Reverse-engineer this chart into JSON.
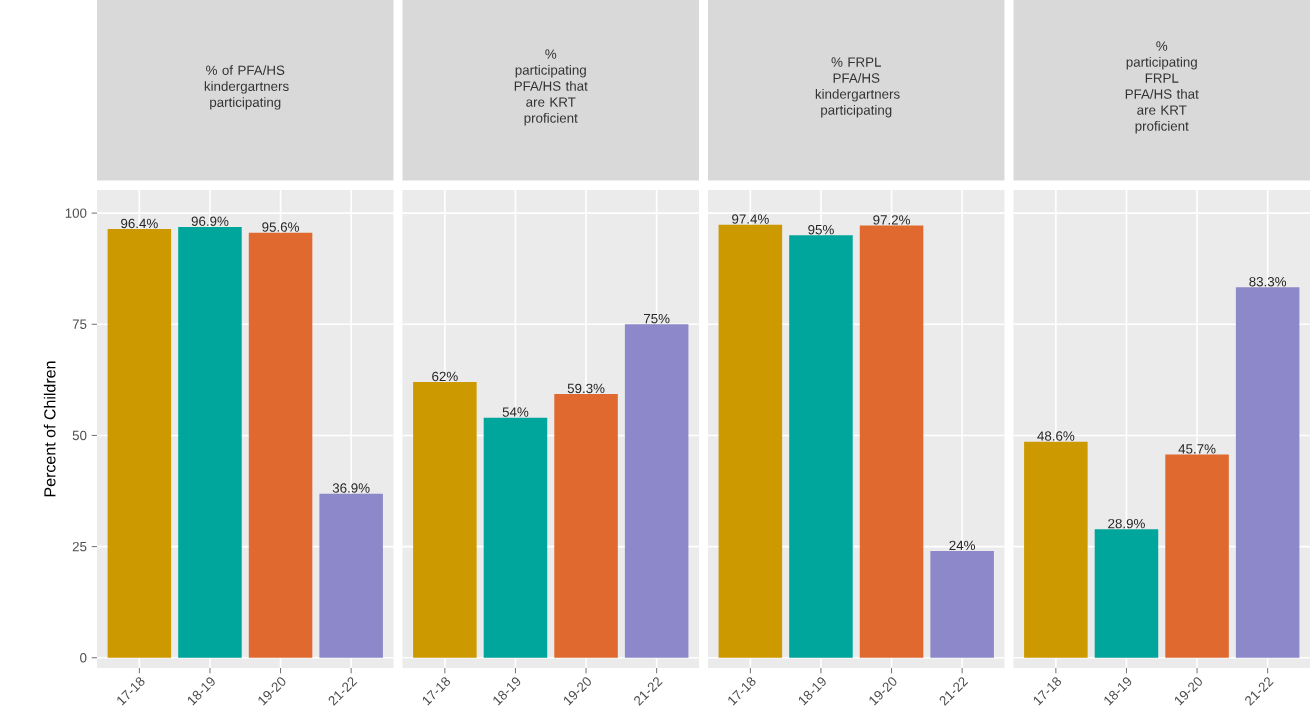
{
  "chart_data": [
    {
      "type": "bar",
      "title": "% of PFA/HS kindergartners participating",
      "ylabel": "Percent of Children",
      "categories": [
        "17-18",
        "18-19",
        "19-20",
        "21-22"
      ],
      "values": [
        96.4,
        96.9,
        95.6,
        36.9
      ],
      "value_labels": [
        "96.4%",
        "96.9%",
        "95.6%",
        "36.9%"
      ],
      "colors": [
        "#cc9900",
        "#00a59b",
        "#e0692f",
        "#8c88ca"
      ],
      "ylim": [
        -2.3,
        105.2
      ],
      "yticks": [
        0,
        25,
        50,
        75,
        100
      ],
      "grid": true
    },
    {
      "type": "bar",
      "title": "% participating PFA/HS that are KRT proficient",
      "categories": [
        "17-18",
        "18-19",
        "19-20",
        "21-22"
      ],
      "values": [
        62,
        54,
        59.3,
        75
      ],
      "value_labels": [
        "62%",
        "54%",
        "59.3%",
        "75%"
      ],
      "colors": [
        "#cc9900",
        "#00a59b",
        "#e0692f",
        "#8c88ca"
      ],
      "ylim": [
        -2.3,
        105.2
      ],
      "yticks": [
        0,
        25,
        50,
        75,
        100
      ],
      "grid": true,
      "tick_labels": "x"
    },
    {
      "type": "bar",
      "title": "% FRPL PFA/HS kindergartners participating",
      "categories": [
        "17-18",
        "18-19",
        "19-20",
        "21-22"
      ],
      "values": [
        97.4,
        95,
        97.2,
        24
      ],
      "value_labels": [
        "97.4%",
        "95%",
        "97.2%",
        "24%"
      ],
      "colors": [
        "#cc9900",
        "#00a59b",
        "#e0692f",
        "#8c88ca"
      ],
      "ylim": [
        -2.3,
        105.2
      ],
      "yticks": [
        0,
        25,
        50,
        75,
        100
      ],
      "grid": true,
      "tick_labels": "x"
    },
    {
      "type": "bar",
      "title": "% participating FRPL PFA/HS that are KRT proficient",
      "categories": [
        "17-18",
        "18-19",
        "19-20",
        "21-22"
      ],
      "values": [
        48.6,
        28.9,
        45.7,
        83.3
      ],
      "value_labels": [
        "48.6%",
        "28.9%",
        "45.7%",
        "83.3%"
      ],
      "colors": [
        "#cc9900",
        "#00a59b",
        "#e0692f",
        "#8c88ca"
      ],
      "ylim": [
        -2.3,
        105.2
      ],
      "yticks": [
        0,
        25,
        50,
        75,
        100
      ],
      "grid": true,
      "tick_labels": "x"
    }
  ]
}
